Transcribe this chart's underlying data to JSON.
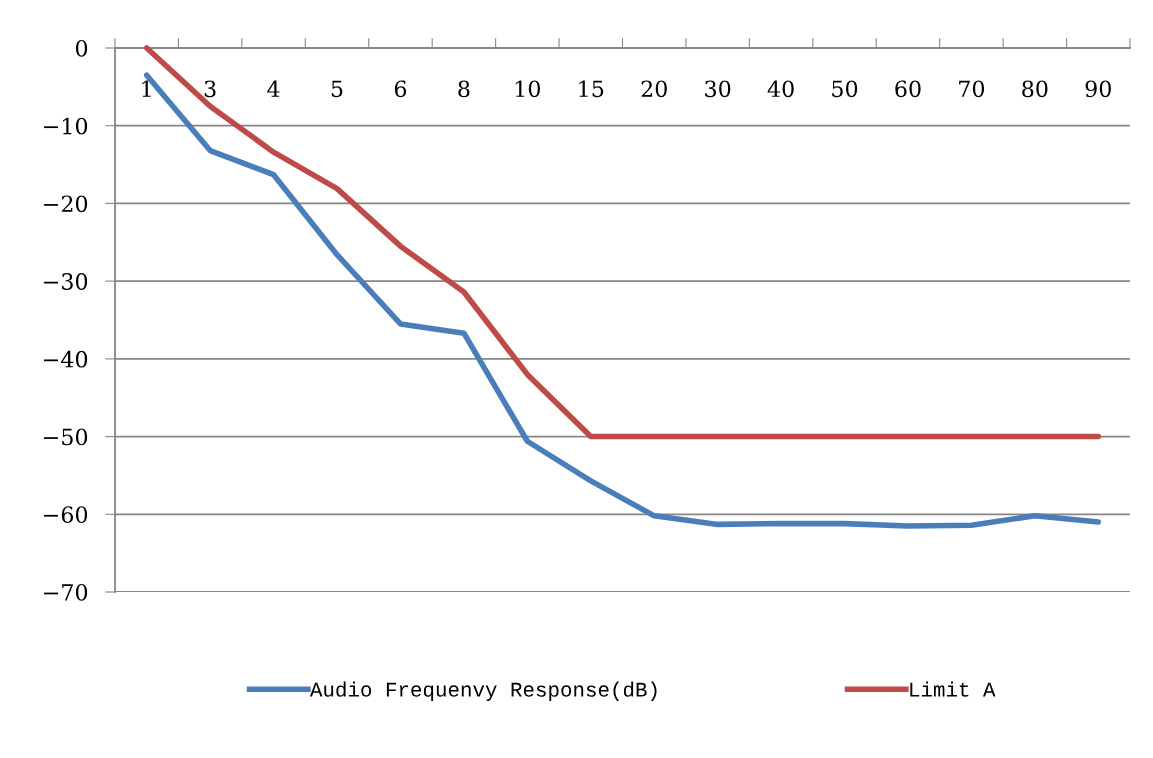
{
  "chart_data": {
    "type": "line",
    "categories": [
      "1",
      "3",
      "4",
      "5",
      "6",
      "8",
      "10",
      "15",
      "20",
      "30",
      "40",
      "50",
      "60",
      "70",
      "80",
      "90"
    ],
    "series": [
      {
        "name": "Audio Frequenvy Response(dB)",
        "color": "#4a7ebb",
        "values": [
          -3.5,
          -13.2,
          -16.3,
          -26.6,
          -35.5,
          -36.7,
          -50.6,
          -55.7,
          -60.2,
          -61.3,
          -61.2,
          -61.2,
          -61.5,
          -61.4,
          -60.2,
          -61.0
        ]
      },
      {
        "name": "Limit A",
        "color": "#be4b48",
        "values": [
          0,
          -7.5,
          -13.4,
          -18.1,
          -25.5,
          -31.4,
          -42.0,
          -50,
          -50,
          -50,
          -50,
          -50,
          -50,
          -50,
          -50,
          -50
        ]
      }
    ],
    "ylim": [
      -70,
      0
    ],
    "yticks": [
      {
        "value": 0,
        "label": "0"
      },
      {
        "value": -10,
        "label": "−10"
      },
      {
        "value": -20,
        "label": "−20"
      },
      {
        "value": -30,
        "label": "−30"
      },
      {
        "value": -40,
        "label": "−40"
      },
      {
        "value": -50,
        "label": "−50"
      },
      {
        "value": -60,
        "label": "−60"
      },
      {
        "value": -70,
        "label": "−70"
      }
    ],
    "grid": "y",
    "legend": "bottom",
    "marker": "none",
    "line_style": "solid"
  }
}
